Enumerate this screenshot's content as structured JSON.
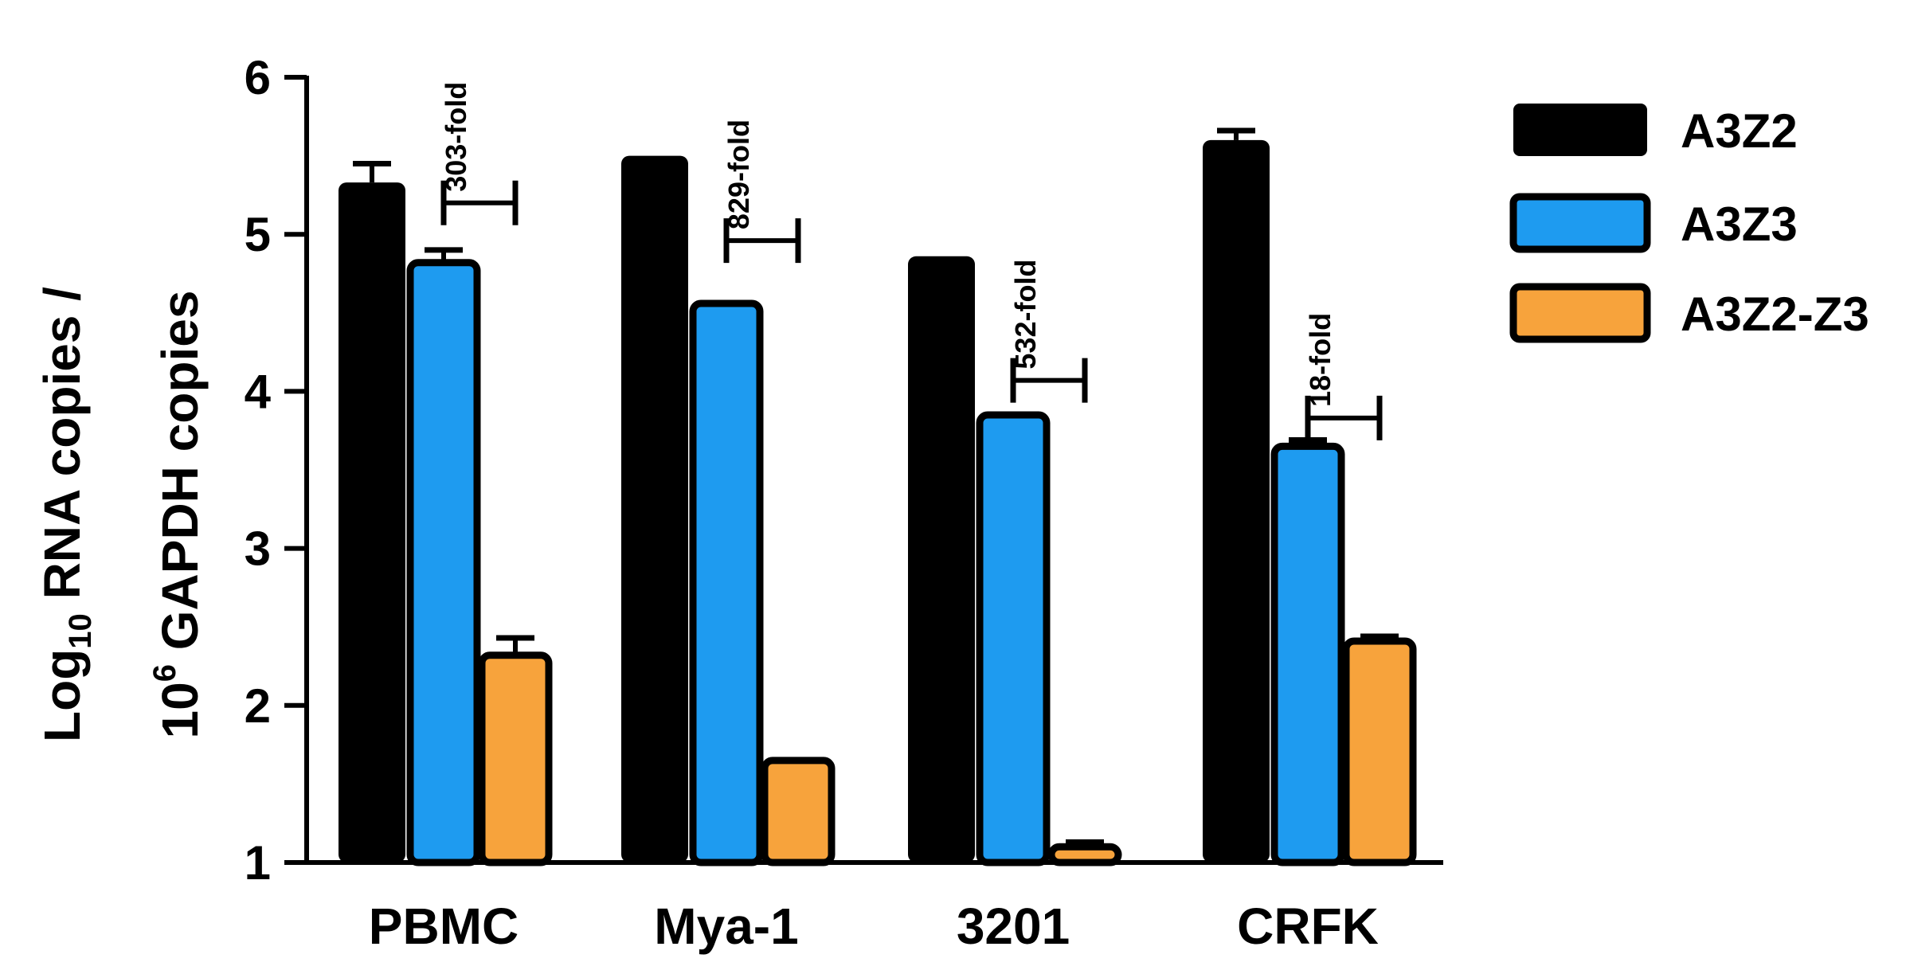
{
  "chart_data": {
    "type": "bar",
    "ylabel_line1_main": "Log",
    "ylabel_line1_sub": "10",
    "ylabel_line1_rest": " RNA copies /",
    "ylabel_line2_main": "10",
    "ylabel_line2_sup": "6",
    "ylabel_line2_rest": " GAPDH copies",
    "ylim": [
      1,
      6
    ],
    "yticks": [
      "1",
      "2",
      "3",
      "4",
      "5",
      "6"
    ],
    "categories": [
      "PBMC",
      "Mya-1",
      "3201",
      "CRFK"
    ],
    "series": [
      {
        "name": "A3Z2",
        "color": "#000000",
        "values": [
          5.33,
          5.5,
          4.86,
          5.6
        ],
        "errors": [
          0.12,
          0.0,
          0.0,
          0.06
        ]
      },
      {
        "name": "A3Z3",
        "color": "#1e9bf0",
        "values": [
          4.82,
          4.56,
          3.85,
          3.65
        ],
        "errors": [
          0.08,
          0.0,
          0.0,
          0.04
        ]
      },
      {
        "name": "A3Z2-Z3",
        "color": "#f7a33c",
        "values": [
          2.32,
          1.65,
          1.1,
          2.41
        ],
        "errors": [
          0.11,
          0.0,
          0.03,
          0.03
        ]
      }
    ],
    "annotations": [
      {
        "category": "PBMC",
        "text": "303-fold",
        "y": 5.2
      },
      {
        "category": "Mya-1",
        "text": "829-fold",
        "y": 4.96
      },
      {
        "category": "3201",
        "text": "532-fold",
        "y": 4.07
      },
      {
        "category": "CRFK",
        "text": "18-fold",
        "y": 3.83
      }
    ],
    "legend_position": "right"
  }
}
